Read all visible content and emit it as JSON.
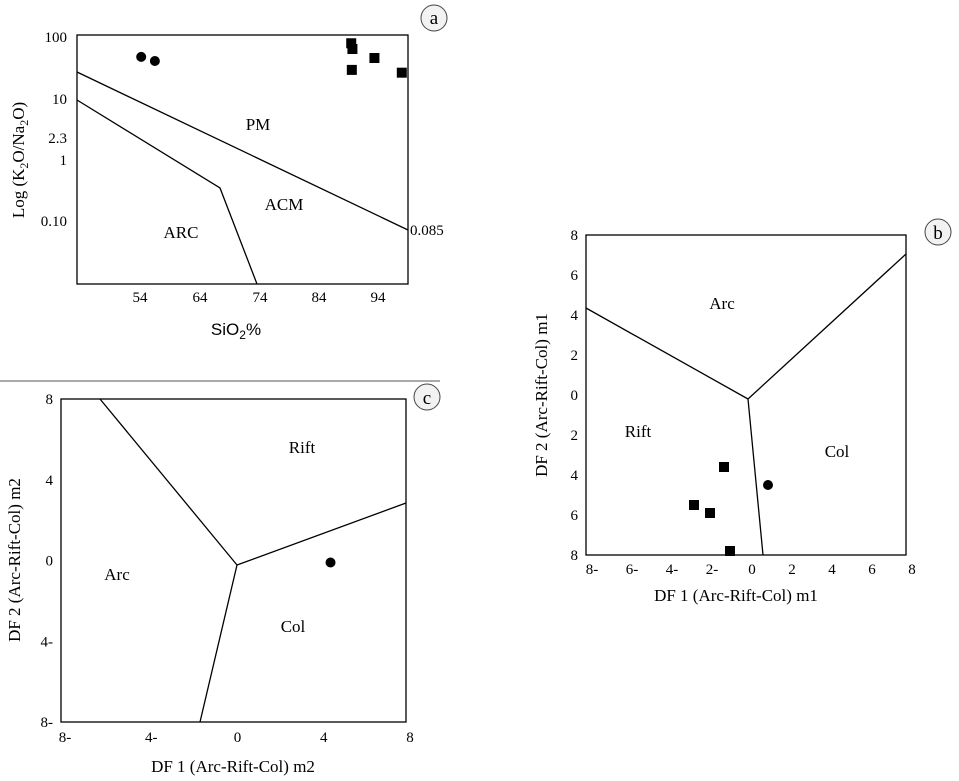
{
  "chart_data": [
    {
      "panel_letter": "a",
      "type": "scatter",
      "xlabel_base": "SiO",
      "xlabel_sub": "2",
      "xlabel_tail": "%",
      "ylabel_parts": [
        "Log (K",
        "2",
        "O/Na",
        "2",
        "O)"
      ],
      "x_ticks": [
        "54",
        "64",
        "74",
        "84",
        "94"
      ],
      "y_ticks": [
        "100",
        "10",
        "2.3",
        "1",
        "0.10"
      ],
      "boundary_label": "0.085",
      "region_labels": [
        "PM",
        "ACM",
        "ARC"
      ],
      "series": [
        {
          "marker": "circle",
          "points": [
            [
              54.2,
              49
            ],
            [
              56.5,
              42
            ]
          ]
        },
        {
          "marker": "square",
          "points": [
            [
              89.5,
              82
            ],
            [
              89.7,
              66
            ],
            [
              89.6,
              30
            ],
            [
              93.4,
              47
            ],
            [
              98.0,
              27
            ]
          ]
        }
      ]
    },
    {
      "panel_letter": "b",
      "type": "scatter",
      "xlabel": "DF 1 (Arc-Rift-Col) m1",
      "ylabel": "DF 2 (Arc-Rift-Col) m1",
      "xlim": [
        -8,
        8
      ],
      "ylim": [
        -8,
        8
      ],
      "x_ticks": [
        "8-",
        "6-",
        "4-",
        "2-",
        "0",
        "2",
        "4",
        "6",
        "8"
      ],
      "y_ticks": [
        "8",
        "6",
        "4",
        "2",
        "0",
        "2",
        "4",
        "6",
        "8"
      ],
      "region_labels": [
        "Arc",
        "Rift",
        "Col"
      ],
      "series": [
        {
          "marker": "circle",
          "points": [
            [
              1.1,
              -4.5
            ]
          ]
        },
        {
          "marker": "square",
          "points": [
            [
              -1.1,
              -3.6
            ],
            [
              -2.6,
              -5.5
            ],
            [
              -1.8,
              -5.9
            ],
            [
              -0.8,
              -7.8
            ]
          ]
        }
      ]
    },
    {
      "panel_letter": "c",
      "type": "scatter",
      "xlabel": "DF 1 (Arc-Rift-Col) m2",
      "ylabel": "DF 2 (Arc-Rift-Col) m2",
      "xlim": [
        -8,
        8
      ],
      "ylim": [
        -8,
        8
      ],
      "x_ticks": [
        "8-",
        "4-",
        "0",
        "4",
        "8"
      ],
      "y_ticks": [
        "8",
        "4",
        "0",
        "4-",
        "8-"
      ],
      "region_labels": [
        "Rift",
        "Arc",
        "Col"
      ],
      "series": [
        {
          "marker": "circle",
          "points": [
            [
              4.5,
              -0.1
            ]
          ]
        }
      ]
    }
  ]
}
